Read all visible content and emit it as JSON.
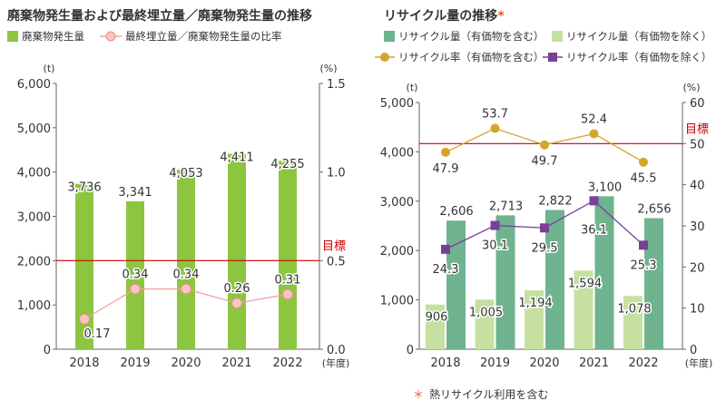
{
  "left": {
    "title": "廃棄物発生量および最終埋立量／廃棄物発生量の推移",
    "legend": [
      {
        "label": "廃棄物発生量",
        "color": "#8cc63f",
        "shape": "square"
      },
      {
        "label": "最終埋立量／廃棄物発生量の比率",
        "color": "#f4a3a0",
        "shape": "circle-line"
      }
    ],
    "units": {
      "left": "(t)",
      "right": "(%)",
      "x": "(年度)"
    },
    "target_label": "目標"
  },
  "right": {
    "title": "リサイクル量の推移",
    "title_mark": "*",
    "legend": [
      {
        "label": "リサイクル量（有価物を含む）",
        "color": "#6fb38f",
        "shape": "square"
      },
      {
        "label": "リサイクル量（有価物を除く）",
        "color": "#c5e0a1",
        "shape": "square"
      },
      {
        "label": "リサイクル率（有価物を含む）",
        "color": "#d4a62a",
        "shape": "circle-line"
      },
      {
        "label": "リサイクル率（有価物を除く）",
        "color": "#7b3f98",
        "shape": "square-line"
      }
    ],
    "units": {
      "left": "(t)",
      "right": "(%)",
      "x": "(年度)"
    },
    "target_label": "目標"
  },
  "footnote": {
    "mark": "＊",
    "text": "熱リサイクル利用を含む"
  },
  "chart_data": [
    {
      "type": "bar",
      "title": "廃棄物発生量および最終埋立量／廃棄物発生量の推移",
      "categories": [
        "2018",
        "2019",
        "2020",
        "2021",
        "2022"
      ],
      "xlabel": "(年度)",
      "ylabel": "(t)",
      "y2label": "(%)",
      "ylim": [
        0,
        6000
      ],
      "y2lim": [
        0,
        1.5
      ],
      "yticks": [
        "0",
        "1,000",
        "2,000",
        "3,000",
        "4,000",
        "5,000",
        "6,000"
      ],
      "y2ticks": [
        "0.0",
        "0.5",
        "1.0",
        "1.5"
      ],
      "series": [
        {
          "name": "廃棄物発生量",
          "kind": "bar",
          "axis": "left",
          "color": "#8cc63f",
          "values": [
            3736,
            3341,
            4053,
            4411,
            4255
          ],
          "labels": [
            "3,736",
            "3,341",
            "4,053",
            "4,411",
            "4,255"
          ]
        },
        {
          "name": "最終埋立量／廃棄物発生量の比率",
          "kind": "line",
          "axis": "right",
          "color": "#f4a3a0",
          "values": [
            0.17,
            0.34,
            0.34,
            0.26,
            0.31
          ],
          "labels": [
            "0.17",
            "0.34",
            "0.34",
            "0.26",
            "0.31"
          ]
        }
      ],
      "target": {
        "label": "目標",
        "value": 2000,
        "axis": "left",
        "color": "#cc0000"
      },
      "grid": false
    },
    {
      "type": "bar",
      "title": "リサイクル量の推移",
      "categories": [
        "2018",
        "2019",
        "2020",
        "2021",
        "2022"
      ],
      "xlabel": "(年度)",
      "ylabel": "(t)",
      "y2label": "(%)",
      "ylim": [
        0,
        5000
      ],
      "y2lim": [
        0,
        60
      ],
      "yticks": [
        "0",
        "1,000",
        "2,000",
        "3,000",
        "4,000",
        "5,000"
      ],
      "y2ticks": [
        "0",
        "10",
        "20",
        "30",
        "40",
        "50",
        "60"
      ],
      "series": [
        {
          "name": "リサイクル量（有価物を除く）",
          "kind": "bar",
          "axis": "left",
          "color": "#c5e0a1",
          "values": [
            906,
            1005,
            1194,
            1594,
            1078
          ],
          "labels": [
            "906",
            "1,005",
            "1,194",
            "1,594",
            "1,078"
          ]
        },
        {
          "name": "リサイクル量（有価物を含む）",
          "kind": "bar",
          "axis": "left",
          "color": "#6fb38f",
          "values": [
            2606,
            2713,
            2822,
            3100,
            2656
          ],
          "labels": [
            "2,606",
            "2,713",
            "2,822",
            "3,100",
            "2,656"
          ]
        },
        {
          "name": "リサイクル率（有価物を含む）",
          "kind": "line",
          "axis": "right",
          "color": "#d4a62a",
          "marker": "circle",
          "values": [
            47.9,
            53.7,
            49.7,
            52.4,
            45.5
          ],
          "labels": [
            "47.9",
            "53.7",
            "49.7",
            "52.4",
            "45.5"
          ]
        },
        {
          "name": "リサイクル率（有価物を除く）",
          "kind": "line",
          "axis": "right",
          "color": "#7b3f98",
          "marker": "square",
          "values": [
            24.3,
            30.1,
            29.5,
            36.1,
            25.3
          ],
          "labels": [
            "24.3",
            "30.1",
            "29.5",
            "36.1",
            "25.3"
          ]
        }
      ],
      "target": {
        "label": "目標",
        "value": 50,
        "axis": "right",
        "color": "#cc0000"
      },
      "grid": false
    }
  ]
}
